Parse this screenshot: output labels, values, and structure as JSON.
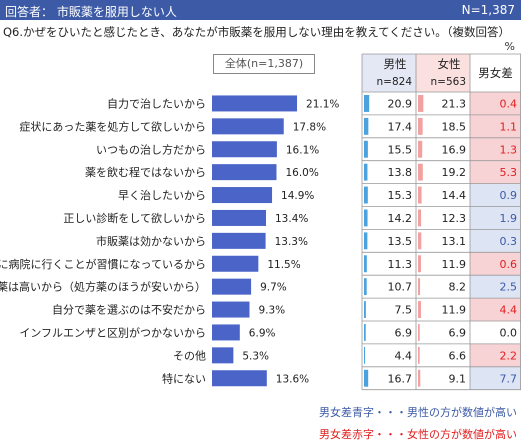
{
  "header": {
    "respondent": "回答者： 市販薬を服用しない人",
    "n": "N=1,387"
  },
  "question": "Q6.かぜをひいたと感じたとき、あなたが市販薬を服用しない理由を教えてください。（複数回答）",
  "unit": "%",
  "overall_label": "全体(n=1,387)",
  "table_header": {
    "male": "男性",
    "male_n": "n=824",
    "female": "女性",
    "female_n": "n=563",
    "diff": "男女差"
  },
  "notes": {
    "blue": "男女差青字・・・男性の方が数値が高い",
    "red": "男女差赤字・・・女性の方が数値が高い"
  },
  "colors": {
    "bar": "#4a64c8",
    "male_tick": "#4aa3df",
    "female_tick": "#f2a0a0",
    "diff_red_bg": "#f8d3d6",
    "diff_blue_bg": "#dde4f4",
    "diff_red_text": "#e02020",
    "diff_blue_text": "#3c5aa6"
  },
  "chart_data": {
    "type": "bar",
    "orientation": "horizontal",
    "categories": [
      "自力で治したいから",
      "症状にあった薬を処方して欲しいから",
      "いつもの治し方だから",
      "薬を飲む程ではないから",
      "早く治したいから",
      "正しい診断をして欲しいから",
      "市販薬は効かないから",
      "すぐに病院に行くことが習慣になっているから",
      "市販薬は高いから（処方薬のほうが安いから）",
      "自分で薬を選ぶのは不安だから",
      "インフルエンザと区別がつかないから",
      "その他",
      "特にない"
    ],
    "values": [
      21.1,
      17.8,
      16.1,
      16.0,
      14.9,
      13.4,
      13.3,
      11.5,
      9.7,
      9.3,
      6.9,
      5.3,
      13.6
    ],
    "value_labels": [
      "21.1%",
      "17.8%",
      "16.1%",
      "16.0%",
      "14.9%",
      "13.4%",
      "13.3%",
      "11.5%",
      "9.7%",
      "9.3%",
      "6.9%",
      "5.3%",
      "13.6%"
    ],
    "table": {
      "male": [
        "20.9",
        "17.4",
        "15.5",
        "13.8",
        "15.3",
        "14.2",
        "13.5",
        "11.3",
        "10.7",
        "7.5",
        "6.9",
        "4.4",
        "16.7"
      ],
      "female": [
        "21.3",
        "18.5",
        "16.9",
        "19.2",
        "14.4",
        "12.3",
        "13.1",
        "11.9",
        "8.2",
        "11.9",
        "6.9",
        "6.6",
        "9.1"
      ],
      "diff": [
        "0.4",
        "1.1",
        "1.3",
        "5.3",
        "0.9",
        "1.9",
        "0.3",
        "0.6",
        "2.5",
        "4.4",
        "0.0",
        "2.2",
        "7.7"
      ],
      "diff_higher": [
        "female",
        "female",
        "female",
        "female",
        "male",
        "male",
        "male",
        "female",
        "male",
        "female",
        "equal",
        "female",
        "male"
      ]
    }
  }
}
